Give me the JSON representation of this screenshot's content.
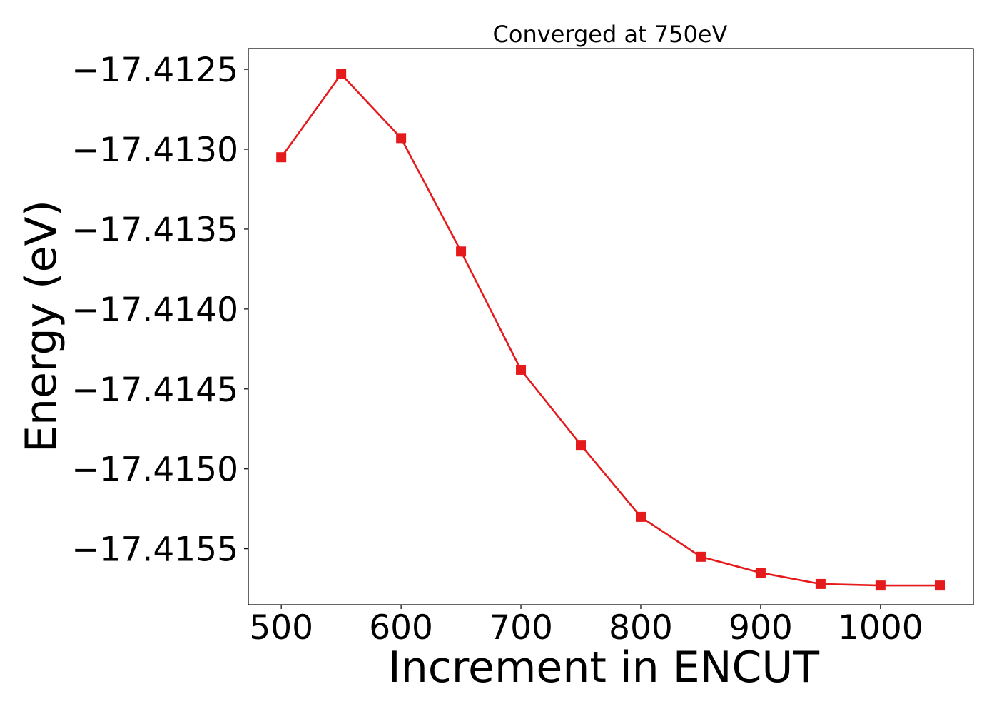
{
  "chart_data": {
    "type": "line",
    "title": "Converged at 750eV",
    "xlabel": "Increment in ENCUT",
    "ylabel": "Energy (eV)",
    "xlim": [
      472.5,
      1077.5
    ],
    "ylim": [
      -17.41585,
      -17.41237
    ],
    "x_ticks": [
      500,
      600,
      700,
      800,
      900,
      1000
    ],
    "x_tick_labels": [
      "500",
      "600",
      "700",
      "800",
      "900",
      "1000"
    ],
    "y_ticks": [
      -17.4125,
      -17.413,
      -17.4135,
      -17.414,
      -17.4145,
      -17.415,
      -17.4155
    ],
    "y_tick_labels": [
      "−17.4125",
      "−17.4130",
      "−17.4135",
      "−17.4140",
      "−17.4145",
      "−17.4150",
      "−17.4155"
    ],
    "grid": false,
    "legend": "none",
    "series": [
      {
        "color": "#e41a1c",
        "marker": "square",
        "x": [
          500,
          550,
          600,
          650,
          700,
          750,
          800,
          850,
          900,
          950,
          1000,
          1050
        ],
        "y": [
          -17.41305,
          -17.41253,
          -17.41293,
          -17.41364,
          -17.41438,
          -17.41485,
          -17.4153,
          -17.41555,
          -17.41565,
          -17.41572,
          -17.41573,
          -17.41573
        ]
      }
    ]
  }
}
